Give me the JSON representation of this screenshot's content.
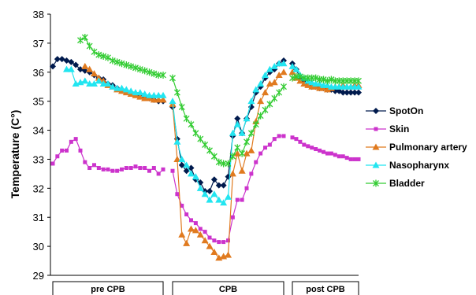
{
  "chart_data": {
    "type": "line",
    "title": "",
    "xlabel": "",
    "ylabel": "Temperature (C°)",
    "ylim": [
      29,
      38
    ],
    "yticks": [
      "29",
      "30",
      "31",
      "32",
      "33",
      "34",
      "35",
      "36",
      "37",
      "38"
    ],
    "grid": false,
    "legend_position": "right",
    "segments": [
      {
        "label": "pre CPB",
        "count": 25
      },
      {
        "label": "CPB",
        "count": 25
      },
      {
        "label": "post CPB",
        "count": 18
      }
    ],
    "series": [
      {
        "name": "SpotOn",
        "color": "#001a4d",
        "marker": "diamond",
        "segments": [
          [
            36.2,
            36.45,
            36.45,
            36.4,
            36.35,
            36.25,
            36.1,
            36.05,
            36.0,
            35.9,
            35.8,
            35.75,
            35.6,
            35.55,
            35.45,
            35.4,
            35.35,
            35.3,
            35.25,
            35.2,
            35.15,
            35.1,
            35.05,
            35.0,
            35.0
          ],
          [
            34.8,
            33.7,
            32.8,
            32.6,
            32.7,
            32.3,
            32.2,
            31.9,
            31.9,
            32.3,
            32.1,
            32.1,
            32.4,
            33.8,
            34.4,
            33.9,
            34.4,
            34.8,
            35.3,
            35.5,
            35.8,
            36.0,
            36.1,
            36.3,
            36.4
          ],
          [
            36.3,
            36.1,
            35.8,
            35.7,
            35.6,
            35.5,
            35.5,
            35.45,
            35.45,
            35.4,
            35.4,
            35.35,
            35.35,
            35.3,
            35.3,
            35.3,
            35.3,
            35.3
          ]
        ]
      },
      {
        "name": "Skin",
        "color": "#cc33cc",
        "marker": "square",
        "segments": [
          [
            32.85,
            33.1,
            33.3,
            33.3,
            33.6,
            33.7,
            33.3,
            32.9,
            32.7,
            32.8,
            32.7,
            32.65,
            32.65,
            32.6,
            32.6,
            32.65,
            32.7,
            32.7,
            32.75,
            32.7,
            32.7,
            32.6,
            32.7,
            32.5,
            32.65
          ],
          [
            32.6,
            31.8,
            31.4,
            31.1,
            30.9,
            30.8,
            30.6,
            30.5,
            30.3,
            30.2,
            30.15,
            30.15,
            30.2,
            31.0,
            31.6,
            31.6,
            32.0,
            32.5,
            32.9,
            33.2,
            33.4,
            33.5,
            33.7,
            33.8,
            33.8
          ],
          [
            33.75,
            33.7,
            33.6,
            33.5,
            33.45,
            33.4,
            33.35,
            33.3,
            33.25,
            33.2,
            33.2,
            33.15,
            33.1,
            33.1,
            33.05,
            33.0,
            33.0,
            33.0
          ]
        ]
      },
      {
        "name": "Pulmonary artery",
        "color": "#e07a1f",
        "marker": "triangle",
        "segments": [
          [
            null,
            null,
            null,
            null,
            null,
            null,
            null,
            36.2,
            36.1,
            35.95,
            35.8,
            35.7,
            35.55,
            35.5,
            35.4,
            35.35,
            35.3,
            35.25,
            35.2,
            35.15,
            35.1,
            35.1,
            35.05,
            35.05,
            35.05
          ],
          [
            34.9,
            33.0,
            30.4,
            30.1,
            30.6,
            30.55,
            30.4,
            30.2,
            30.0,
            29.8,
            29.6,
            29.65,
            29.7,
            32.5,
            33.2,
            32.6,
            33.2,
            33.3,
            34.3,
            35.0,
            35.3,
            35.6,
            35.65,
            35.9,
            36.0
          ],
          [
            36.0,
            35.8,
            35.7,
            35.6,
            35.55,
            35.5,
            35.5,
            35.45,
            35.45,
            35.4,
            35.45,
            35.5,
            35.5,
            35.55,
            35.5,
            35.5,
            35.55,
            35.55
          ]
        ]
      },
      {
        "name": "Nasopharynx",
        "color": "#22e5f0",
        "marker": "triangle",
        "segments": [
          [
            null,
            null,
            null,
            36.1,
            36.1,
            35.6,
            35.65,
            35.7,
            35.6,
            35.6,
            35.7,
            35.6,
            35.6,
            35.5,
            35.45,
            35.45,
            35.4,
            35.35,
            35.3,
            35.3,
            35.25,
            35.2,
            35.2,
            35.2,
            35.2
          ],
          [
            35.0,
            33.6,
            33.0,
            32.8,
            32.5,
            32.4,
            32.0,
            31.8,
            31.6,
            31.8,
            31.6,
            31.5,
            31.7,
            33.9,
            34.2,
            33.9,
            34.4,
            35.0,
            35.4,
            35.6,
            35.9,
            36.1,
            36.2,
            36.3,
            36.3
          ],
          [
            36.2,
            36.1,
            35.9,
            35.8,
            35.7,
            35.65,
            35.6,
            35.6,
            35.55,
            35.55,
            35.5,
            35.5,
            35.5,
            35.5,
            35.5,
            35.5,
            35.5,
            35.5
          ]
        ]
      },
      {
        "name": "Bladder",
        "color": "#33cc33",
        "marker": "star",
        "segments": [
          [
            null,
            null,
            null,
            null,
            null,
            null,
            37.1,
            37.2,
            36.9,
            36.7,
            36.6,
            36.55,
            36.5,
            36.4,
            36.35,
            36.3,
            36.25,
            36.2,
            36.15,
            36.1,
            36.05,
            36.0,
            35.95,
            35.9,
            35.9
          ],
          [
            35.8,
            35.3,
            34.8,
            34.4,
            34.2,
            33.9,
            33.7,
            33.5,
            33.3,
            33.1,
            32.9,
            32.85,
            32.85,
            33.1,
            33.4,
            33.2,
            33.6,
            33.9,
            34.2,
            34.5,
            34.7,
            34.9,
            35.1,
            35.3,
            35.5
          ],
          [
            35.8,
            35.85,
            35.85,
            35.8,
            35.8,
            35.8,
            35.8,
            35.75,
            35.75,
            35.7,
            35.75,
            35.7,
            35.7,
            35.7,
            35.7,
            35.7,
            35.7,
            35.7
          ]
        ]
      }
    ]
  }
}
